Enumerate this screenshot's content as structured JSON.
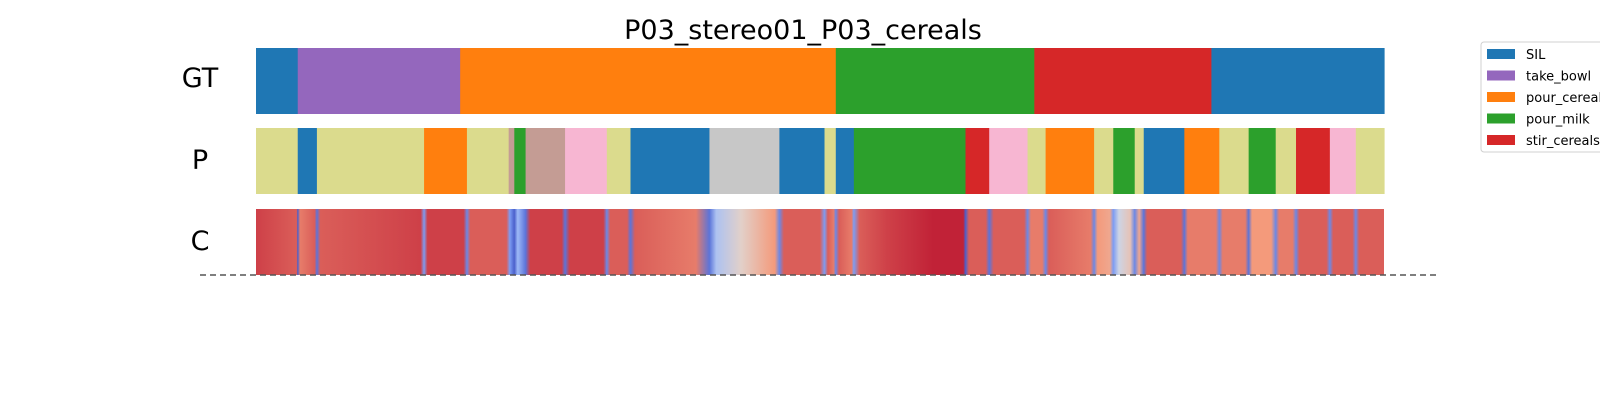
{
  "chart_data": {
    "type": "segmentation",
    "title": "P03_stereo01_P03_cereals",
    "total_frames": 1000,
    "row_labels": [
      "GT",
      "P",
      "C"
    ],
    "colors": {
      "SIL": "#1f77b4",
      "take_bowl": "#9467bd",
      "pour_cereals": "#ff7f0e",
      "pour_milk": "#2ca02c",
      "stir_cereals": "#d62728",
      "olive": "#dbdb8d",
      "brown": "#c49c94",
      "pink": "#f7b6d2",
      "gray": "#c7c7c7"
    },
    "legend": [
      {
        "label": "SIL",
        "key": "SIL"
      },
      {
        "label": "take_bowl",
        "key": "take_bowl"
      },
      {
        "label": "pour_cereals",
        "key": "pour_cereals"
      },
      {
        "label": "pour_milk",
        "key": "pour_milk"
      },
      {
        "label": "stir_cereals",
        "key": "stir_cereals"
      }
    ],
    "gt_segments": [
      {
        "start": 0,
        "end": 37,
        "class": "SIL"
      },
      {
        "start": 37,
        "end": 181,
        "class": "take_bowl"
      },
      {
        "start": 181,
        "end": 514,
        "class": "pour_cereals"
      },
      {
        "start": 514,
        "end": 690,
        "class": "pour_milk"
      },
      {
        "start": 690,
        "end": 847,
        "class": "stir_cereals"
      },
      {
        "start": 847,
        "end": 1000,
        "class": "SIL"
      }
    ],
    "pred_segments": [
      {
        "start": 0,
        "end": 37,
        "class": "olive"
      },
      {
        "start": 37,
        "end": 54,
        "class": "SIL"
      },
      {
        "start": 54,
        "end": 149,
        "class": "olive"
      },
      {
        "start": 149,
        "end": 187,
        "class": "pour_cereals"
      },
      {
        "start": 187,
        "end": 224,
        "class": "olive"
      },
      {
        "start": 224,
        "end": 229,
        "class": "brown"
      },
      {
        "start": 229,
        "end": 239,
        "class": "pour_milk"
      },
      {
        "start": 239,
        "end": 274,
        "class": "brown"
      },
      {
        "start": 274,
        "end": 311,
        "class": "pink"
      },
      {
        "start": 311,
        "end": 332,
        "class": "olive"
      },
      {
        "start": 332,
        "end": 402,
        "class": "SIL"
      },
      {
        "start": 402,
        "end": 464,
        "class": "gray"
      },
      {
        "start": 464,
        "end": 504,
        "class": "SIL"
      },
      {
        "start": 504,
        "end": 514,
        "class": "olive"
      },
      {
        "start": 514,
        "end": 530,
        "class": "SIL"
      },
      {
        "start": 530,
        "end": 629,
        "class": "pour_milk"
      },
      {
        "start": 629,
        "end": 650,
        "class": "stir_cereals"
      },
      {
        "start": 650,
        "end": 684,
        "class": "pink"
      },
      {
        "start": 684,
        "end": 700,
        "class": "olive"
      },
      {
        "start": 700,
        "end": 743,
        "class": "pour_cereals"
      },
      {
        "start": 743,
        "end": 760,
        "class": "olive"
      },
      {
        "start": 760,
        "end": 779,
        "class": "pour_milk"
      },
      {
        "start": 779,
        "end": 787,
        "class": "olive"
      },
      {
        "start": 787,
        "end": 823,
        "class": "SIL"
      },
      {
        "start": 823,
        "end": 854,
        "class": "pour_cereals"
      },
      {
        "start": 854,
        "end": 880,
        "class": "olive"
      },
      {
        "start": 880,
        "end": 904,
        "class": "pour_milk"
      },
      {
        "start": 904,
        "end": 922,
        "class": "olive"
      },
      {
        "start": 922,
        "end": 952,
        "class": "stir_cereals"
      },
      {
        "start": 952,
        "end": 975,
        "class": "pink"
      },
      {
        "start": 975,
        "end": 1000,
        "class": "olive"
      }
    ],
    "confidence": [
      {
        "t": 0,
        "v": 0.9
      },
      {
        "t": 36,
        "v": 0.85
      },
      {
        "t": 37,
        "v": 0.05
      },
      {
        "t": 39,
        "v": 0.8
      },
      {
        "t": 52,
        "v": 0.85
      },
      {
        "t": 54,
        "v": 0.1
      },
      {
        "t": 57,
        "v": 0.85
      },
      {
        "t": 146,
        "v": 0.9
      },
      {
        "t": 149,
        "v": 0.2
      },
      {
        "t": 152,
        "v": 0.9
      },
      {
        "t": 184,
        "v": 0.9
      },
      {
        "t": 187,
        "v": 0.15
      },
      {
        "t": 190,
        "v": 0.85
      },
      {
        "t": 222,
        "v": 0.85
      },
      {
        "t": 225,
        "v": 0.2
      },
      {
        "t": 229,
        "v": 0.05
      },
      {
        "t": 232,
        "v": 0.3
      },
      {
        "t": 239,
        "v": 0.1
      },
      {
        "t": 243,
        "v": 0.9
      },
      {
        "t": 271,
        "v": 0.9
      },
      {
        "t": 274,
        "v": 0.1
      },
      {
        "t": 278,
        "v": 0.9
      },
      {
        "t": 308,
        "v": 0.9
      },
      {
        "t": 311,
        "v": 0.15
      },
      {
        "t": 314,
        "v": 0.85
      },
      {
        "t": 329,
        "v": 0.85
      },
      {
        "t": 332,
        "v": 0.1
      },
      {
        "t": 336,
        "v": 0.85
      },
      {
        "t": 390,
        "v": 0.8
      },
      {
        "t": 402,
        "v": 0.1
      },
      {
        "t": 408,
        "v": 0.35
      },
      {
        "t": 430,
        "v": 0.55
      },
      {
        "t": 460,
        "v": 0.75
      },
      {
        "t": 464,
        "v": 0.15
      },
      {
        "t": 468,
        "v": 0.85
      },
      {
        "t": 500,
        "v": 0.85
      },
      {
        "t": 504,
        "v": 0.2
      },
      {
        "t": 507,
        "v": 0.85
      },
      {
        "t": 512,
        "v": 0.8
      },
      {
        "t": 514,
        "v": 0.15
      },
      {
        "t": 517,
        "v": 0.85
      },
      {
        "t": 528,
        "v": 0.8
      },
      {
        "t": 530,
        "v": 0.2
      },
      {
        "t": 535,
        "v": 0.85
      },
      {
        "t": 560,
        "v": 0.9
      },
      {
        "t": 600,
        "v": 0.95
      },
      {
        "t": 627,
        "v": 0.95
      },
      {
        "t": 629,
        "v": 0.05
      },
      {
        "t": 632,
        "v": 0.85
      },
      {
        "t": 647,
        "v": 0.85
      },
      {
        "t": 650,
        "v": 0.1
      },
      {
        "t": 654,
        "v": 0.85
      },
      {
        "t": 681,
        "v": 0.85
      },
      {
        "t": 684,
        "v": 0.15
      },
      {
        "t": 687,
        "v": 0.8
      },
      {
        "t": 697,
        "v": 0.8
      },
      {
        "t": 700,
        "v": 0.15
      },
      {
        "t": 703,
        "v": 0.85
      },
      {
        "t": 740,
        "v": 0.8
      },
      {
        "t": 743,
        "v": 0.15
      },
      {
        "t": 746,
        "v": 0.75
      },
      {
        "t": 757,
        "v": 0.7
      },
      {
        "t": 760,
        "v": 0.2
      },
      {
        "t": 765,
        "v": 0.45
      },
      {
        "t": 775,
        "v": 0.6
      },
      {
        "t": 779,
        "v": 0.15
      },
      {
        "t": 783,
        "v": 0.7
      },
      {
        "t": 787,
        "v": 0.1
      },
      {
        "t": 790,
        "v": 0.85
      },
      {
        "t": 820,
        "v": 0.85
      },
      {
        "t": 823,
        "v": 0.1
      },
      {
        "t": 826,
        "v": 0.8
      },
      {
        "t": 851,
        "v": 0.8
      },
      {
        "t": 854,
        "v": 0.15
      },
      {
        "t": 857,
        "v": 0.8
      },
      {
        "t": 877,
        "v": 0.8
      },
      {
        "t": 880,
        "v": 0.1
      },
      {
        "t": 883,
        "v": 0.75
      },
      {
        "t": 900,
        "v": 0.75
      },
      {
        "t": 904,
        "v": 0.15
      },
      {
        "t": 907,
        "v": 0.8
      },
      {
        "t": 919,
        "v": 0.8
      },
      {
        "t": 922,
        "v": 0.15
      },
      {
        "t": 925,
        "v": 0.85
      },
      {
        "t": 949,
        "v": 0.85
      },
      {
        "t": 952,
        "v": 0.15
      },
      {
        "t": 955,
        "v": 0.85
      },
      {
        "t": 972,
        "v": 0.85
      },
      {
        "t": 975,
        "v": 0.15
      },
      {
        "t": 978,
        "v": 0.85
      },
      {
        "t": 1000,
        "v": 0.85
      }
    ]
  }
}
